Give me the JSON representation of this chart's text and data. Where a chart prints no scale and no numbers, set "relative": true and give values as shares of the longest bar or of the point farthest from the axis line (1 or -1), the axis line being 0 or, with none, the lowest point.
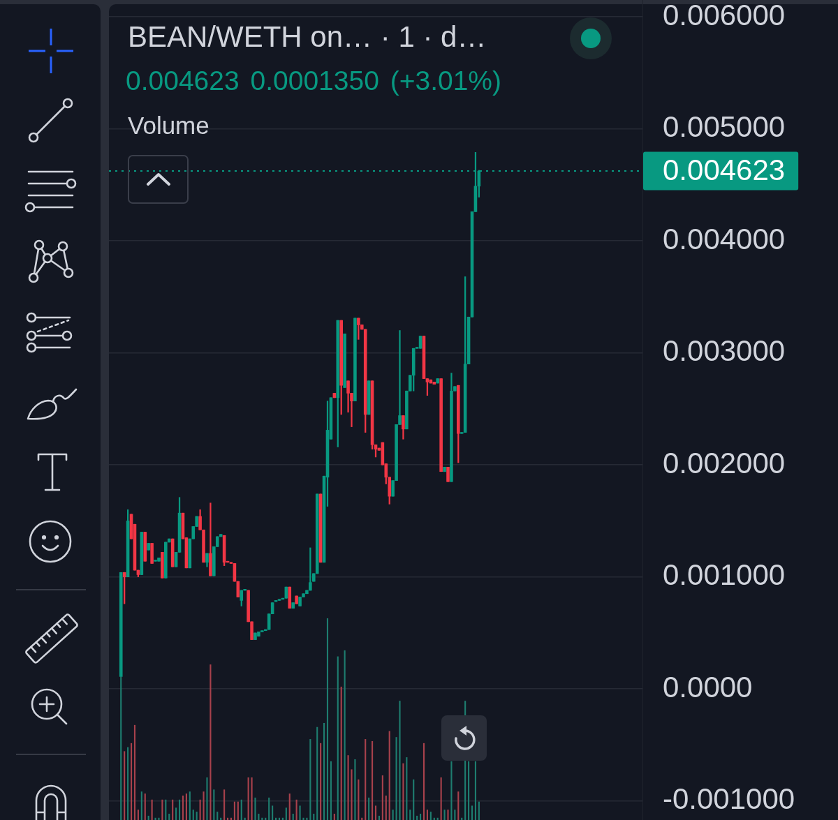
{
  "chart_data": [
    {
      "type": "candlestick",
      "title": "BEAN/WETH on… · 1 · d…",
      "subtitle": "0.004623 0.0001350 (+3.01%)",
      "categories": [
        null,
        null,
        null,
        null,
        null,
        null,
        null,
        null,
        null,
        null,
        null,
        null,
        null,
        null,
        null,
        null,
        null,
        null,
        null,
        null,
        null,
        null,
        null,
        null,
        null,
        null,
        null,
        null,
        null,
        null,
        null,
        null,
        null,
        null,
        null,
        null,
        null,
        null,
        null,
        null,
        null,
        null,
        null,
        null,
        null,
        null,
        null,
        null,
        null,
        null,
        null,
        null,
        null,
        null,
        null,
        null,
        null,
        null,
        null,
        null,
        null,
        null,
        null,
        null,
        null,
        null,
        null,
        null,
        null,
        null,
        null,
        null,
        null,
        null,
        null,
        null,
        null,
        null,
        null,
        null,
        null,
        null,
        null,
        null,
        null,
        null,
        null,
        null,
        null,
        null,
        null,
        null,
        null,
        null,
        null,
        null,
        null,
        null,
        null,
        null,
        null,
        null,
        null,
        null,
        null,
        null,
        null,
        null,
        null,
        null,
        null,
        null,
        null,
        null,
        null,
        null,
        null,
        null,
        null,
        null,
        null,
        null,
        null,
        null,
        null,
        null,
        null,
        null,
        null,
        null,
        null,
        null,
        null,
        null,
        null,
        null,
        null,
        null,
        null,
        null,
        null,
        null,
        null,
        null,
        null,
        null,
        null,
        null,
        null,
        null,
        null,
        null,
        null,
        null,
        null
      ],
      "ohlc": [
        null,
        null,
        null,
        [
          0.00011,
          0.00104,
          0.00011,
          0.00104
        ],
        [
          0.00104,
          0.00104,
          0.00076,
          0.001
        ],
        [
          0.001,
          0.0016,
          0.001,
          0.0015
        ],
        [
          0.00156,
          0.00156,
          0.00134,
          0.00134
        ],
        [
          0.00147,
          0.00147,
          0.00106,
          0.00106
        ],
        [
          0.00106,
          0.00106,
          0.001,
          0.00102
        ],
        [
          0.00102,
          0.0014,
          0.00102,
          0.0014
        ],
        [
          0.0014,
          0.0014,
          0.00114,
          0.00114
        ],
        [
          0.00124,
          0.0013,
          0.00124,
          0.0013
        ],
        [
          0.0013,
          0.0013,
          0.00112,
          0.00112
        ],
        [
          0.00114,
          0.00115,
          0.00114,
          0.00115
        ],
        [
          0.00114,
          0.00117,
          0.00114,
          0.00117
        ],
        [
          0.00122,
          0.00122,
          0.00099,
          0.00099
        ],
        [
          0.00099,
          0.00131,
          0.00099,
          0.00131
        ],
        [
          0.00131,
          0.00134,
          0.00131,
          0.00134
        ],
        [
          0.00134,
          0.00134,
          0.00109,
          0.00109
        ],
        [
          0.00109,
          0.00122,
          0.00109,
          0.00122
        ],
        [
          0.00122,
          0.00171,
          0.00122,
          0.00157
        ],
        [
          0.00157,
          0.00157,
          0.00134,
          0.00134
        ],
        [
          0.00135,
          0.00135,
          0.00108,
          0.00108
        ],
        [
          0.00108,
          0.00134,
          0.00108,
          0.00134
        ],
        [
          0.00134,
          0.00145,
          0.00134,
          0.00145
        ],
        [
          0.00145,
          0.00154,
          0.00145,
          0.00154
        ],
        [
          0.00154,
          0.0016,
          0.00142,
          0.00142
        ],
        [
          0.00142,
          0.00142,
          0.00113,
          0.00113
        ],
        [
          0.00113,
          0.00121,
          0.00109,
          0.00121
        ],
        [
          0.00121,
          0.00166,
          0.00101,
          0.00101
        ],
        [
          0.00101,
          0.00127,
          0.00101,
          0.00127
        ],
        [
          0.00127,
          0.00136,
          0.00127,
          0.00136
        ],
        [
          0.00136,
          0.00138,
          0.00136,
          0.00138
        ],
        [
          0.00137,
          0.00137,
          0.0011,
          0.00113
        ],
        [
          0.00114,
          0.00114,
          0.00113,
          0.00113
        ],
        [
          0.00113,
          0.00113,
          0.00112,
          0.00112
        ],
        [
          0.00112,
          0.00112,
          0.00096,
          0.00096
        ],
        [
          0.00096,
          0.00096,
          0.00082,
          0.00082
        ],
        [
          0.00079,
          0.00088,
          0.00074,
          0.00088
        ],
        [
          0.00088,
          0.00089,
          0.00088,
          0.00089
        ],
        [
          0.00088,
          0.00088,
          0.0006,
          0.0006
        ],
        [
          0.0006,
          0.0006,
          0.00044,
          0.00044
        ],
        [
          0.00044,
          0.0005,
          0.00044,
          0.0005
        ],
        [
          0.00047,
          0.00051,
          0.00047,
          0.00051
        ],
        [
          0.00051,
          0.00052,
          0.00051,
          0.00052
        ],
        [
          0.00052,
          0.00053,
          0.00052,
          0.00053
        ],
        [
          0.00053,
          0.00067,
          0.00053,
          0.00067
        ],
        [
          0.00067,
          0.00077,
          0.00067,
          0.00077
        ],
        [
          0.00078,
          0.00079,
          0.00078,
          0.00079
        ],
        [
          0.00079,
          0.0008,
          0.00079,
          0.0008
        ],
        [
          0.0008,
          0.00081,
          0.0008,
          0.00081
        ],
        [
          0.00081,
          0.00091,
          0.00081,
          0.00091
        ],
        [
          0.00091,
          0.00091,
          0.00072,
          0.00072
        ],
        [
          0.00072,
          0.00077,
          0.00072,
          0.00077
        ],
        [
          0.00083,
          0.00083,
          0.00076,
          0.00076
        ],
        [
          0.00074,
          0.00082,
          0.00074,
          0.00082
        ],
        [
          0.00082,
          0.00085,
          0.00082,
          0.00085
        ],
        [
          0.00085,
          0.00088,
          0.00085,
          0.00088
        ],
        [
          0.00088,
          0.00126,
          0.00088,
          0.00095
        ],
        [
          0.00096,
          0.00103,
          0.00096,
          0.00103
        ],
        [
          0.00103,
          0.00174,
          0.00103,
          0.00174
        ],
        [
          0.00174,
          0.00174,
          0.00113,
          0.00113
        ],
        [
          0.00113,
          0.0019,
          0.00113,
          0.0019
        ],
        [
          0.00189,
          0.00257,
          0.00163,
          0.00231
        ],
        [
          0.00223,
          0.0026,
          0.00223,
          0.0026
        ],
        [
          0.00264,
          0.00264,
          0.0026,
          0.0026
        ],
        [
          0.0026,
          0.00329,
          0.00216,
          0.00329
        ],
        [
          0.00329,
          0.00329,
          0.00245,
          0.00271
        ],
        [
          0.00269,
          0.00317,
          0.00269,
          0.00317
        ],
        [
          0.00275,
          0.00275,
          0.00247,
          0.00264
        ],
        [
          0.00264,
          0.00264,
          0.00234,
          0.00257
        ],
        [
          0.00257,
          0.00331,
          0.00257,
          0.00331
        ],
        [
          0.00331,
          0.00331,
          0.00312,
          0.00325
        ],
        [
          0.00325,
          0.00325,
          0.00321,
          0.00321
        ],
        [
          0.00321,
          0.00321,
          0.00229,
          0.00245
        ],
        [
          0.00245,
          0.00275,
          0.00245,
          0.00275
        ],
        [
          0.00275,
          0.00275,
          0.00214,
          0.00218
        ],
        [
          0.00218,
          0.00218,
          0.00207,
          0.00214
        ],
        [
          0.00215,
          0.00215,
          0.00213,
          0.00213
        ],
        [
          0.0022,
          0.0022,
          0.002,
          0.002
        ],
        [
          0.00201,
          0.00201,
          0.00183,
          0.00189
        ],
        [
          0.00189,
          0.00189,
          0.00165,
          0.00172
        ],
        [
          0.00172,
          0.00186,
          0.00172,
          0.00186
        ],
        [
          0.00186,
          0.00236,
          0.00186,
          0.00236
        ],
        [
          0.00236,
          0.0032,
          0.00236,
          0.00244
        ],
        [
          0.00244,
          0.00244,
          0.00223,
          0.00232
        ],
        [
          0.00232,
          0.00266,
          0.00232,
          0.00266
        ],
        [
          0.00266,
          0.0028,
          0.00266,
          0.0028
        ],
        [
          0.0028,
          0.00304,
          0.00266,
          0.00304
        ],
        [
          0.00304,
          0.00305,
          0.00304,
          0.00305
        ],
        [
          0.00304,
          0.00315,
          0.00304,
          0.00315
        ],
        [
          0.00315,
          0.00315,
          0.00277,
          0.00277
        ],
        [
          0.00277,
          0.00277,
          0.00262,
          0.00274
        ],
        [
          0.00276,
          0.00276,
          0.00273,
          0.00273
        ],
        [
          0.00274,
          0.00274,
          0.00272,
          0.00272
        ],
        [
          0.00273,
          0.00277,
          0.00273,
          0.00277
        ],
        [
          0.00277,
          0.00277,
          0.00194,
          0.00194
        ],
        [
          0.00194,
          0.00198,
          0.00194,
          0.00198
        ],
        [
          0.00198,
          0.00198,
          0.00185,
          0.00185
        ],
        [
          0.00185,
          0.00282,
          0.00185,
          0.00266
        ],
        [
          0.00266,
          0.0027,
          0.00266,
          0.0027
        ],
        [
          0.00271,
          0.00271,
          0.00202,
          0.00228
        ],
        [
          0.00228,
          0.00229,
          0.00228,
          0.00229
        ],
        [
          0.00229,
          0.00368,
          0.00229,
          0.0029
        ],
        [
          0.0029,
          0.00332,
          0.0029,
          0.00332
        ],
        [
          0.00332,
          0.00426,
          0.00332,
          0.00426
        ],
        [
          0.00426,
          0.00479,
          0.00426,
          0.004488
        ],
        [
          0.004488,
          0.00463,
          0.00439,
          0.004623
        ],
        null,
        null,
        null,
        null,
        null,
        null,
        null,
        null,
        null,
        null,
        null,
        null,
        null,
        null,
        null,
        null,
        null,
        null,
        null,
        null,
        null,
        null,
        null,
        null,
        null,
        null,
        null,
        null,
        null,
        null,
        null,
        null,
        null,
        null,
        null,
        null,
        null,
        null,
        null,
        null,
        null,
        null,
        null,
        null,
        null,
        null,
        null
      ],
      "colors": [
        null,
        null,
        null,
        "#089981",
        "#f23645",
        "#089981",
        "#f23645",
        "#f23645",
        "#f23645",
        "#089981",
        "#f23645",
        "#089981",
        "#f23645",
        "#089981",
        "#089981",
        "#f23645",
        "#089981",
        "#089981",
        "#f23645",
        "#089981",
        "#089981",
        "#f23645",
        "#f23645",
        "#089981",
        "#089981",
        "#089981",
        "#f23645",
        "#f23645",
        "#089981",
        "#f23645",
        "#089981",
        "#089981",
        "#089981",
        "#f23645",
        "#f23645",
        "#f23645",
        "#f23645",
        "#f23645",
        "#089981",
        "#089981",
        "#f23645",
        "#f23645",
        "#089981",
        "#089981",
        "#089981",
        "#089981",
        "#089981",
        "#089981",
        "#089981",
        "#089981",
        "#089981",
        "#089981",
        "#f23645",
        "#089981",
        "#f23645",
        "#089981",
        "#089981",
        "#089981",
        "#089981",
        "#089981",
        "#089981",
        "#f23645",
        "#089981",
        "#089981",
        "#089981",
        "#f23645",
        "#089981",
        "#f23645",
        "#089981",
        "#f23645",
        "#f23645",
        "#089981",
        "#f23645",
        "#f23645",
        "#f23645",
        "#089981",
        "#f23645",
        "#f23645",
        "#f23645",
        "#f23645",
        "#f23645",
        "#f23645",
        "#089981",
        "#089981",
        "#089981",
        "#f23645",
        "#089981",
        "#089981",
        "#089981",
        "#089981",
        "#089981",
        "#f23645",
        "#f23645",
        "#f23645",
        "#f23645",
        "#089981",
        "#f23645",
        "#089981",
        "#f23645",
        "#089981",
        "#089981",
        "#f23645",
        "#089981",
        "#089981",
        "#089981",
        "#089981",
        "#089981",
        "#089981",
        null,
        null,
        null,
        null,
        null,
        null,
        null,
        null,
        null,
        null,
        null,
        null,
        null,
        null,
        null,
        null,
        null,
        null,
        null,
        null,
        null,
        null,
        null,
        null,
        null,
        null,
        null,
        null,
        null,
        null,
        null,
        null,
        null,
        null,
        null,
        null,
        null,
        null,
        null,
        null,
        null,
        null,
        null,
        null,
        null,
        null,
        null
      ],
      "ylim": [
        -0.00117,
        0.00615
      ],
      "yticks": [
        {
          "value": -0.001,
          "label": "-0.001000"
        },
        {
          "value": 0,
          "label": "0.0000"
        },
        {
          "value": 0.001,
          "label": "0.001000"
        },
        {
          "value": 0.002,
          "label": "0.002000"
        },
        {
          "value": 0.003,
          "label": "0.003000"
        },
        {
          "value": 0.004,
          "label": "0.004000"
        },
        {
          "value": 0.005,
          "label": "0.005000"
        },
        {
          "value": 0.006,
          "label": "0.006000"
        }
      ],
      "grid": "y",
      "tick_labels": "y",
      "ref_lines": [
        {
          "axis": "y",
          "value": 0.004623,
          "label": "0.004623",
          "color": "#089981",
          "line_style": "dotted"
        }
      ]
    },
    {
      "type": "bar",
      "title": "Volume",
      "relative": true,
      "categories": [
        null,
        null,
        null,
        null,
        null,
        null,
        null,
        null,
        null,
        null,
        null,
        null,
        null,
        null,
        null,
        null,
        null,
        null,
        null,
        null,
        null,
        null,
        null,
        null,
        null,
        null,
        null,
        null,
        null,
        null,
        null,
        null,
        null,
        null,
        null,
        null,
        null,
        null,
        null,
        null,
        null,
        null,
        null,
        null,
        null,
        null,
        null,
        null,
        null,
        null,
        null,
        null,
        null,
        null,
        null,
        null,
        null,
        null,
        null,
        null,
        null,
        null,
        null,
        null,
        null,
        null,
        null,
        null,
        null,
        null,
        null,
        null,
        null,
        null,
        null,
        null,
        null,
        null,
        null,
        null,
        null,
        null,
        null,
        null,
        null,
        null,
        null,
        null,
        null,
        null,
        null,
        null,
        null,
        null,
        null,
        null,
        null,
        null,
        null,
        null,
        null,
        null,
        null,
        null,
        null,
        null,
        null,
        null,
        null,
        null,
        null,
        null,
        null,
        null,
        null,
        null,
        null,
        null,
        null,
        null,
        null,
        null,
        null,
        null,
        null,
        null,
        null,
        null,
        null,
        null,
        null,
        null,
        null,
        null,
        null,
        null,
        null,
        null,
        null,
        null,
        null,
        null,
        null,
        null,
        null,
        null,
        null,
        null,
        null,
        null,
        null,
        null,
        null,
        null,
        null
      ],
      "values": [
        null,
        null,
        null,
        0.71,
        0.34,
        0.36,
        0.38,
        0.47,
        0.05,
        0.14,
        0.13,
        0.02,
        0.1,
        0.01,
        0.01,
        0.1,
        0.1,
        0.03,
        0.1,
        0.06,
        0.1,
        0.12,
        0.13,
        0.14,
        0.05,
        0.04,
        0.1,
        0.14,
        0.21,
        0.77,
        0.15,
        0.04,
        0.01,
        0.15,
        0.01,
        0.01,
        0.09,
        0.09,
        0.1,
        0.01,
        0.21,
        0.21,
        0.11,
        0.03,
        0.01,
        0.01,
        0.11,
        0.07,
        0.01,
        0.01,
        0.01,
        0.06,
        0.13,
        0.03,
        0.1,
        0.07,
        0.01,
        0.01,
        0.4,
        0.03,
        0.46,
        0.38,
        0.48,
        1,
        0.29,
        0.03,
        0.81,
        0.66,
        0.84,
        0.32,
        0.25,
        0.3,
        0.2,
        0.01,
        0.4,
        0.11,
        0.39,
        0.07,
        0.02,
        0.22,
        0.12,
        0.44,
        0.05,
        0.41,
        0.59,
        0.28,
        0.31,
        0.05,
        0.2,
        0.02,
        0.03,
        0.38,
        0.05,
        0.04,
        0.01,
        0.01,
        0.21,
        0.05,
        0.05,
        0.29,
        0.05,
        0.14,
        0.01,
        0.59,
        0.29,
        0.07,
        0.29,
        0.09,
        null,
        null,
        null,
        null,
        null,
        null,
        null,
        null,
        null,
        null,
        null,
        null,
        null,
        null,
        null,
        null,
        null,
        null,
        null,
        null,
        null,
        null,
        null,
        null,
        null,
        null,
        null,
        null,
        null,
        null,
        null,
        null,
        null,
        null,
        null,
        null,
        null,
        null,
        null,
        null,
        null,
        null,
        null,
        null,
        null,
        null,
        null
      ],
      "colors": [
        null,
        null,
        null,
        "#1e7d6f",
        "#a8414c",
        "#1e7d6f",
        "#a8414c",
        "#a8414c",
        "#a8414c",
        "#1e7d6f",
        "#a8414c",
        "#1e7d6f",
        "#a8414c",
        "#1e7d6f",
        "#1e7d6f",
        "#a8414c",
        "#1e7d6f",
        "#1e7d6f",
        "#a8414c",
        "#1e7d6f",
        "#1e7d6f",
        "#a8414c",
        "#a8414c",
        "#1e7d6f",
        "#1e7d6f",
        "#1e7d6f",
        "#a8414c",
        "#a8414c",
        "#1e7d6f",
        "#a8414c",
        "#1e7d6f",
        "#1e7d6f",
        "#1e7d6f",
        "#a8414c",
        "#a8414c",
        "#a8414c",
        "#a8414c",
        "#a8414c",
        "#1e7d6f",
        "#1e7d6f",
        "#a8414c",
        "#a8414c",
        "#1e7d6f",
        "#1e7d6f",
        "#1e7d6f",
        "#1e7d6f",
        "#1e7d6f",
        "#1e7d6f",
        "#1e7d6f",
        "#1e7d6f",
        "#1e7d6f",
        "#1e7d6f",
        "#a8414c",
        "#1e7d6f",
        "#a8414c",
        "#1e7d6f",
        "#1e7d6f",
        "#1e7d6f",
        "#1e7d6f",
        "#1e7d6f",
        "#1e7d6f",
        "#a8414c",
        "#1e7d6f",
        "#1e7d6f",
        "#1e7d6f",
        "#a8414c",
        "#1e7d6f",
        "#a8414c",
        "#1e7d6f",
        "#a8414c",
        "#a8414c",
        "#1e7d6f",
        "#a8414c",
        "#a8414c",
        "#a8414c",
        "#1e7d6f",
        "#a8414c",
        "#a8414c",
        "#1e7d6f",
        "#a8414c",
        "#a8414c",
        "#a8414c",
        "#1e7d6f",
        "#1e7d6f",
        "#1e7d6f",
        "#a8414c",
        "#1e7d6f",
        "#1e7d6f",
        "#1e7d6f",
        "#1e7d6f",
        "#1e7d6f",
        "#a8414c",
        "#a8414c",
        "#1e7d6f",
        "#1e7d6f",
        "#1e7d6f",
        "#a8414c",
        "#1e7d6f",
        "#a8414c",
        "#1e7d6f",
        "#1e7d6f",
        "#a8414c",
        "#1e7d6f",
        "#1e7d6f",
        "#1e7d6f",
        "#1e7d6f",
        "#1e7d6f",
        "#1e7d6f",
        null,
        null,
        null,
        null,
        null,
        null,
        null,
        null,
        null,
        null,
        null,
        null,
        null,
        null,
        null,
        null,
        null,
        null,
        null,
        null,
        null,
        null,
        null,
        null,
        null,
        null,
        null,
        null,
        null,
        null,
        null,
        null,
        null,
        null,
        null,
        null,
        null,
        null,
        null,
        null,
        null,
        null,
        null,
        null,
        null,
        null,
        null
      ]
    }
  ]
}
